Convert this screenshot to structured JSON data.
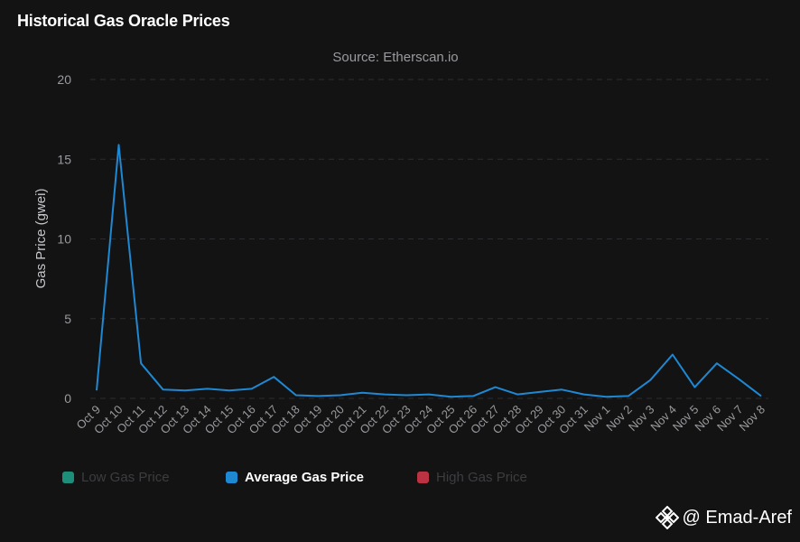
{
  "header": {
    "title": "Historical Gas Oracle Prices"
  },
  "legend": [
    {
      "label": "Low Gas Price",
      "color": "#1ea58b",
      "active": false
    },
    {
      "label": "Average Gas Price",
      "color": "#1e88d2",
      "active": true
    },
    {
      "label": "High Gas Price",
      "color": "#d93a4a",
      "active": false
    }
  ],
  "watermark": {
    "text": "@ Emad-Aref",
    "icon": "binance-logo-icon"
  },
  "chart_data": {
    "type": "line",
    "title": "Source: Etherscan.io",
    "xlabel": "",
    "ylabel": "Gas Price (gwei)",
    "ylim": [
      0,
      20
    ],
    "yticks": [
      0,
      5,
      10,
      15,
      20
    ],
    "grid": true,
    "legend_position": "bottom-left",
    "categories": [
      "Oct 9",
      "Oct 10",
      "Oct 11",
      "Oct 12",
      "Oct 13",
      "Oct 14",
      "Oct 15",
      "Oct 16",
      "Oct 17",
      "Oct 18",
      "Oct 19",
      "Oct 20",
      "Oct 21",
      "Oct 22",
      "Oct 23",
      "Oct 24",
      "Oct 25",
      "Oct 26",
      "Oct 27",
      "Oct 28",
      "Oct 29",
      "Oct 30",
      "Oct 31",
      "Nov 1",
      "Nov 2",
      "Nov 3",
      "Nov 4",
      "Nov 5",
      "Nov 6",
      "Nov 7",
      "Nov 8"
    ],
    "series": [
      {
        "name": "Average Gas Price",
        "color": "#1e88d2",
        "values": [
          0.5,
          15.9,
          2.2,
          0.55,
          0.5,
          0.6,
          0.5,
          0.6,
          1.35,
          0.2,
          0.15,
          0.2,
          0.35,
          0.25,
          0.2,
          0.25,
          0.1,
          0.15,
          0.7,
          0.25,
          0.4,
          0.55,
          0.25,
          0.1,
          0.15,
          1.15,
          2.75,
          0.7,
          2.2,
          1.2,
          0.15
        ]
      }
    ]
  }
}
